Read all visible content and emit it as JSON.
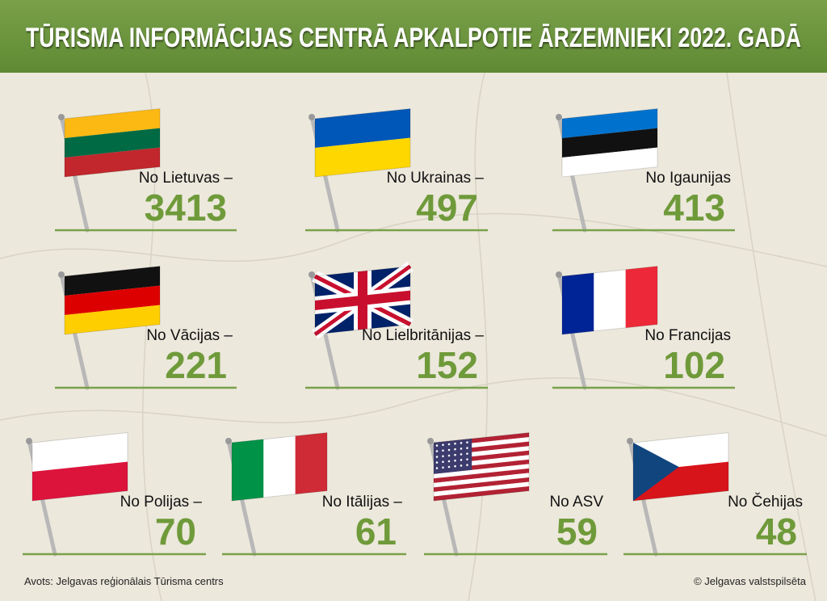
{
  "header": {
    "title": "TŪRISMA INFORMĀCIJAS CENTRĀ APKALPOTIE ĀRZEMNIEKI 2022. GADĀ"
  },
  "items": [
    {
      "label": "No Lietuvas –",
      "value": 3413
    },
    {
      "label": "No Ukrainas –",
      "value": 497
    },
    {
      "label": "No Igaunijas",
      "value": 413
    },
    {
      "label": "No Vācijas –",
      "value": 221
    },
    {
      "label": "No Lielbritānijas –",
      "value": 152
    },
    {
      "label": "No Francijas",
      "value": 102
    },
    {
      "label": "No Polijas –",
      "value": 70
    },
    {
      "label": "No Itālijas –",
      "value": 61
    },
    {
      "label": "No ASV",
      "value": 59
    },
    {
      "label": "No Čehijas",
      "value": 48
    }
  ],
  "footer": {
    "source": "Avots: Jelgavas reģionālais Tūrisma centrs",
    "credit": "© Jelgavas valstspilsēta"
  }
}
